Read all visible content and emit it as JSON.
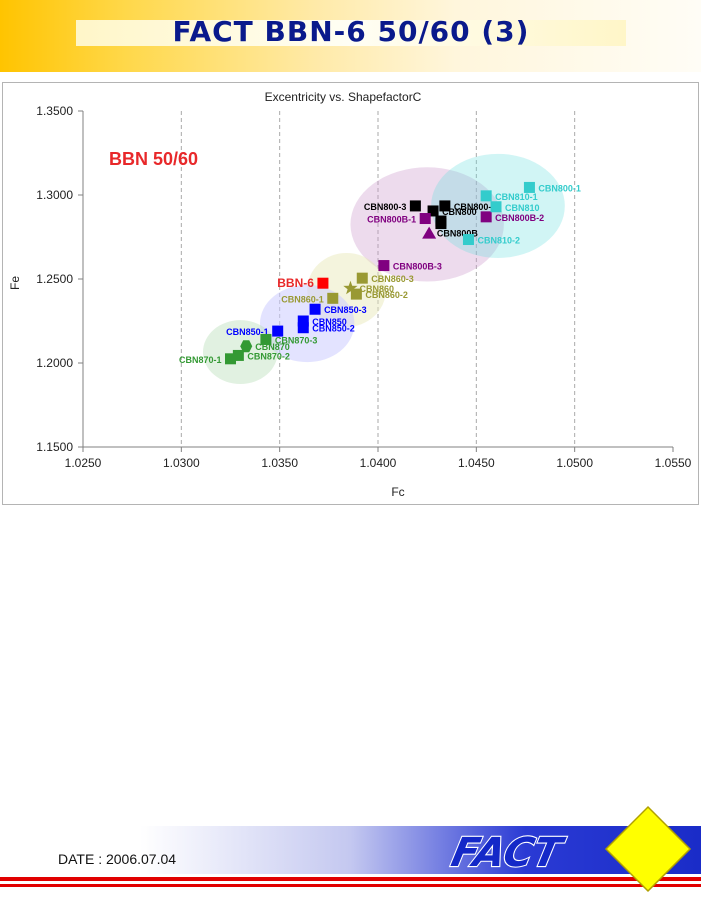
{
  "header": {
    "title": "FACT BBN-6 50/60 (3)"
  },
  "footer": {
    "date": "DATE : 2006.07.04",
    "brand": "FACT"
  },
  "colors": {
    "cbn800": "#000000",
    "cbn800b": "#800080",
    "cbn810": "#33cccc",
    "cbn860": "#999933",
    "cbn850": "#0000ff",
    "cbn870": "#339933",
    "bbn6": "#ff0000",
    "title_text": "#0a1a8c",
    "accent": "#ffc400"
  },
  "chart_data": {
    "type": "scatter",
    "title": "Excentricity vs. ShapefactorC",
    "xlabel": "Fc",
    "ylabel": "Fe",
    "xlim": [
      1.025,
      1.055
    ],
    "ylim": [
      1.15,
      1.35
    ],
    "x_ticks": [
      "1.0250",
      "1.0300",
      "1.0350",
      "1.0400",
      "1.0450",
      "1.0500",
      "1.0550"
    ],
    "y_ticks": [
      "1.1500",
      "1.2000",
      "1.2500",
      "1.3000",
      "1.3500"
    ],
    "grid": "vertical-dashed",
    "annotation": "BBN 50/60",
    "groups": [
      {
        "name": "CBN800",
        "color": "#000000",
        "center": [
          1.0425,
          1.2825
        ],
        "radii": [
          0.0039,
          0.034
        ],
        "fill": "#cc99cc",
        "opacity": 0.35
      },
      {
        "name": "CBN810",
        "color": "#33cccc",
        "center": [
          1.0461,
          1.2935
        ],
        "radii": [
          0.0034,
          0.031
        ],
        "fill": "#66dddd",
        "opacity": 0.3
      },
      {
        "name": "CBN860",
        "color": "#999933",
        "center": [
          1.0384,
          1.2435
        ],
        "radii": [
          0.002,
          0.022
        ],
        "fill": "#e6e6b3",
        "opacity": 0.45
      },
      {
        "name": "CBN850",
        "color": "#0000ff",
        "center": [
          1.0364,
          1.2235
        ],
        "radii": [
          0.0024,
          0.023
        ],
        "fill": "#ccccff",
        "opacity": 0.55
      },
      {
        "name": "CBN870",
        "color": "#339933",
        "center": [
          1.033,
          1.2065
        ],
        "radii": [
          0.0019,
          0.019
        ],
        "fill": "#b3ddb3",
        "opacity": 0.4
      }
    ],
    "points": [
      {
        "label": "CBN800-1",
        "x": 1.0434,
        "y": 1.2935,
        "color": "#000000",
        "marker": "square",
        "label_side": "right"
      },
      {
        "label": "CBN800-3",
        "x": 1.0419,
        "y": 1.2935,
        "color": "#000000",
        "marker": "square",
        "label_side": "left"
      },
      {
        "label": "CBN800",
        "x": 1.0428,
        "y": 1.2905,
        "color": "#000000",
        "marker": "square",
        "label_side": "right"
      },
      {
        "label": "CBN800B",
        "x": 1.0432,
        "y": 1.283,
        "color": "#000000",
        "marker": "square",
        "label_side": "below"
      },
      {
        "label": "CBN800-2",
        "x": 1.0432,
        "y": 1.2845,
        "color": "#000000",
        "marker": "square",
        "label_side": "none"
      },
      {
        "label": "CBN800B-1",
        "x": 1.0424,
        "y": 1.286,
        "color": "#800080",
        "marker": "square",
        "label_side": "left"
      },
      {
        "label": "CBN800B-2",
        "x": 1.0455,
        "y": 1.287,
        "color": "#800080",
        "marker": "square",
        "label_side": "right"
      },
      {
        "label": "CBN800B-3",
        "x": 1.0403,
        "y": 1.258,
        "color": "#800080",
        "marker": "square",
        "label_side": "right"
      },
      {
        "label": "CBN800B avg",
        "x": 1.0426,
        "y": 1.277,
        "color": "#800080",
        "marker": "triangle",
        "label_side": "none"
      },
      {
        "label": "CBN810-1",
        "x": 1.0455,
        "y": 1.2995,
        "color": "#33cccc",
        "marker": "square",
        "label_side": "right"
      },
      {
        "label": "CBN810",
        "x": 1.046,
        "y": 1.293,
        "color": "#33cccc",
        "marker": "square",
        "label_side": "right"
      },
      {
        "label": "CBN810-2",
        "x": 1.0446,
        "y": 1.2735,
        "color": "#33cccc",
        "marker": "square",
        "label_side": "right"
      },
      {
        "label": "CBN800-1 ",
        "x": 1.0477,
        "y": 1.3045,
        "color": "#33cccc",
        "marker": "square",
        "label_side": "right"
      },
      {
        "label": "BBN-6",
        "x": 1.0372,
        "y": 1.2475,
        "color": "#ff0000",
        "marker": "square",
        "label_side": "left"
      },
      {
        "label": "CBN860-3",
        "x": 1.0392,
        "y": 1.2505,
        "color": "#999933",
        "marker": "square",
        "label_side": "right"
      },
      {
        "label": "CBN860",
        "x": 1.0386,
        "y": 1.2445,
        "color": "#999933",
        "marker": "star",
        "label_side": "right"
      },
      {
        "label": "CBN860-1",
        "x": 1.0377,
        "y": 1.2385,
        "color": "#999933",
        "marker": "square",
        "label_side": "left"
      },
      {
        "label": "CBN860-2",
        "x": 1.0389,
        "y": 1.241,
        "color": "#999933",
        "marker": "square",
        "label_side": "right"
      },
      {
        "label": "CBN850-3",
        "x": 1.0368,
        "y": 1.232,
        "color": "#0000ff",
        "marker": "square",
        "label_side": "right"
      },
      {
        "label": "CBN850",
        "x": 1.0362,
        "y": 1.225,
        "color": "#0000ff",
        "marker": "square",
        "label_side": "right"
      },
      {
        "label": "CBN850-2",
        "x": 1.0362,
        "y": 1.221,
        "color": "#0000ff",
        "marker": "square",
        "label_side": "right"
      },
      {
        "label": "CBN850-1",
        "x": 1.0349,
        "y": 1.219,
        "color": "#0000ff",
        "marker": "square",
        "label_side": "left"
      },
      {
        "label": "CBN870-3",
        "x": 1.0343,
        "y": 1.214,
        "color": "#339933",
        "marker": "square",
        "label_side": "right"
      },
      {
        "label": "CBN870",
        "x": 1.0333,
        "y": 1.21,
        "color": "#339933",
        "marker": "circle",
        "label_side": "right"
      },
      {
        "label": "CBN870-2",
        "x": 1.0329,
        "y": 1.2045,
        "color": "#339933",
        "marker": "square",
        "label_side": "right"
      },
      {
        "label": "CBN870-1",
        "x": 1.0325,
        "y": 1.2025,
        "color": "#339933",
        "marker": "square",
        "label_side": "left"
      }
    ]
  }
}
